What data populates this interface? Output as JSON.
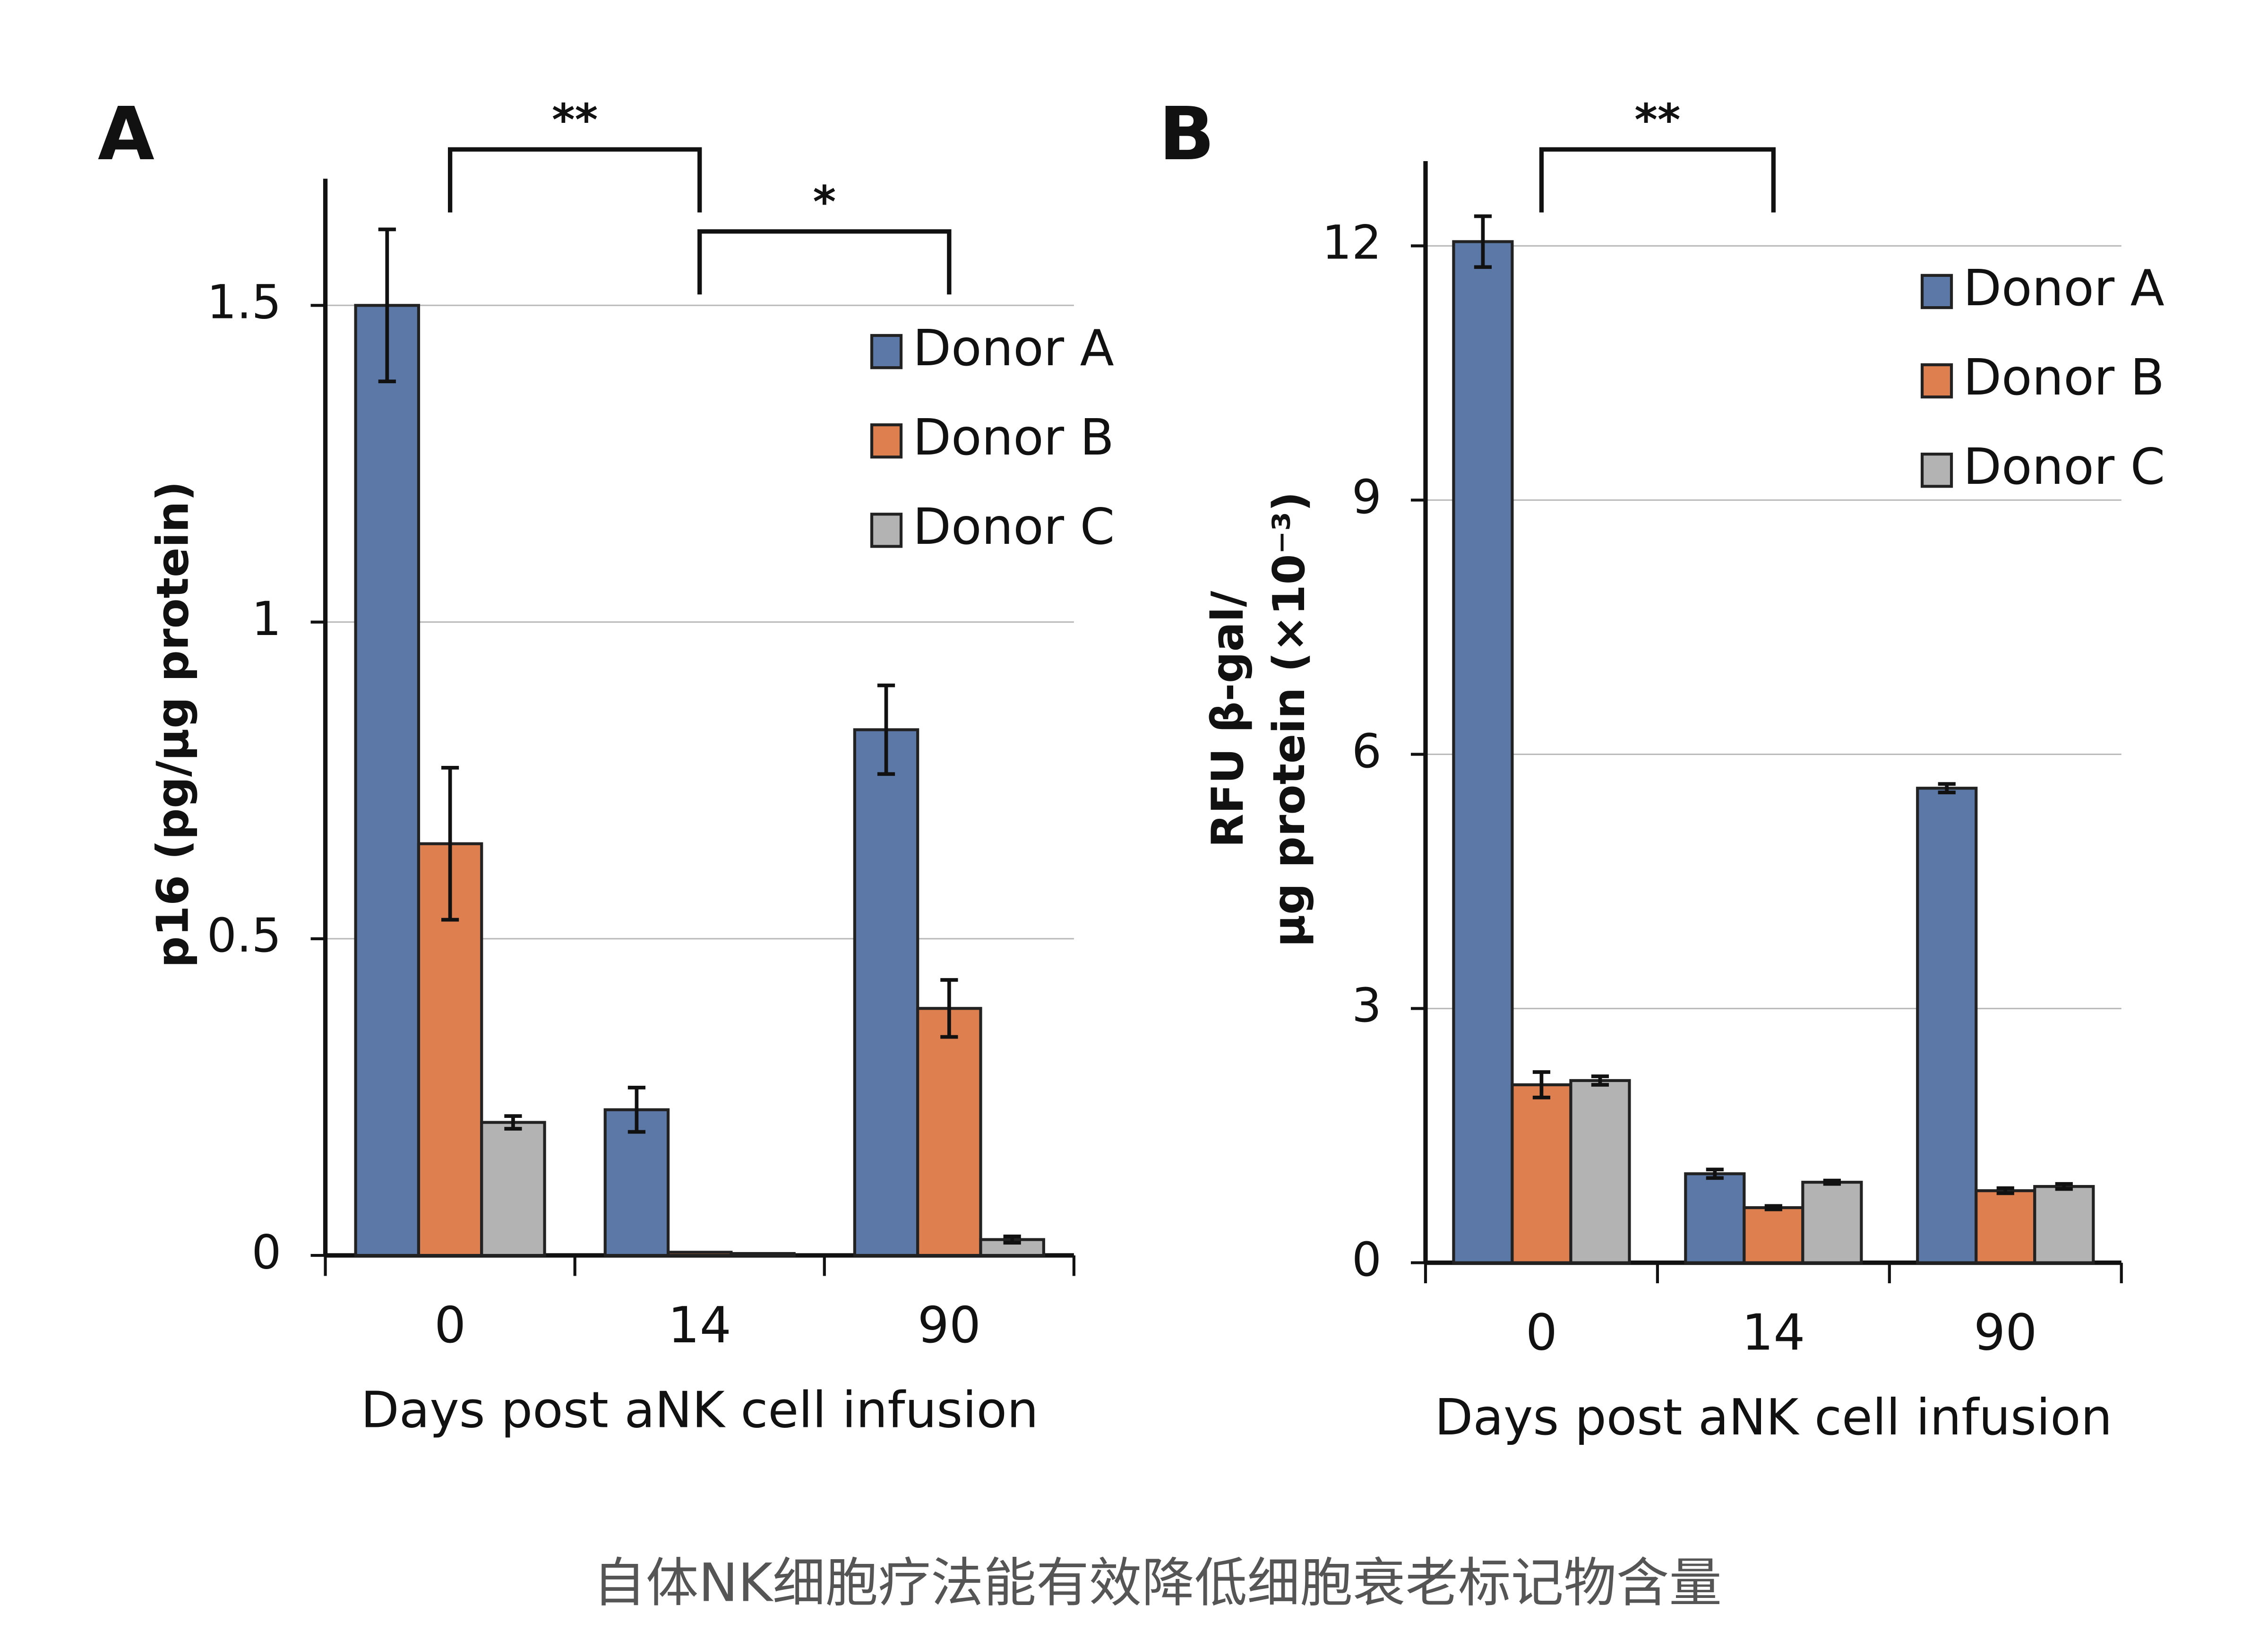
{
  "charts": [
    {
      "chart_data": {
        "type": "bar",
        "panel": "A",
        "ylabel": [
          "p16 (pg/μg protein)"
        ],
        "xlabel": "Days post aNK cell infusion",
        "categories": [
          "0",
          "14",
          "90"
        ],
        "series": [
          {
            "name": "Donor A",
            "color": "#5b78a7",
            "values": [
              1.5,
              0.23,
              0.83
            ],
            "errors": [
              0.12,
              0.035,
              0.07
            ]
          },
          {
            "name": "Donor B",
            "color": "#dd7f4f",
            "values": [
              0.65,
              0.005,
              0.39
            ],
            "errors": [
              0.12,
              0,
              0.045
            ]
          },
          {
            "name": "Donor C",
            "color": "#b3b3b3",
            "values": [
              0.21,
              0.003,
              0.025
            ],
            "errors": [
              0.01,
              0,
              0.005
            ]
          }
        ],
        "ylim": [
          0,
          1.7
        ],
        "yticks": [
          0,
          0.5,
          1,
          1.5
        ],
        "grid": true,
        "legend": "upper right",
        "annotations": [
          {
            "text": "**",
            "from": 0,
            "to": 1
          },
          {
            "text": "*",
            "from": 1,
            "to": 2
          }
        ]
      }
    },
    {
      "chart_data": {
        "type": "bar",
        "panel": "B",
        "ylabel": [
          "RFU β-gal/",
          "μg protein (×10⁻³)"
        ],
        "xlabel": "Days post aNK cell infusion",
        "categories": [
          "0",
          "14",
          "90"
        ],
        "series": [
          {
            "name": "Donor A",
            "color": "#5b78a7",
            "values": [
              12.05,
              1.05,
              5.6
            ],
            "errors": [
              0.3,
              0.05,
              0.05
            ]
          },
          {
            "name": "Donor B",
            "color": "#dd7f4f",
            "values": [
              2.1,
              0.65,
              0.85
            ],
            "errors": [
              0.15,
              0.02,
              0.03
            ]
          },
          {
            "name": "Donor C",
            "color": "#b3b3b3",
            "values": [
              2.15,
              0.95,
              0.9
            ],
            "errors": [
              0.05,
              0.02,
              0.03
            ]
          }
        ],
        "ylim": [
          0,
          13
        ],
        "yticks": [
          0,
          3,
          6,
          9,
          12
        ],
        "grid": true,
        "legend": "upper right",
        "annotations": [
          {
            "text": "**",
            "from": 0,
            "to": 1
          }
        ]
      }
    }
  ],
  "caption": "自体NK细胞疗法能有效降低细胞衰老标记物含量"
}
